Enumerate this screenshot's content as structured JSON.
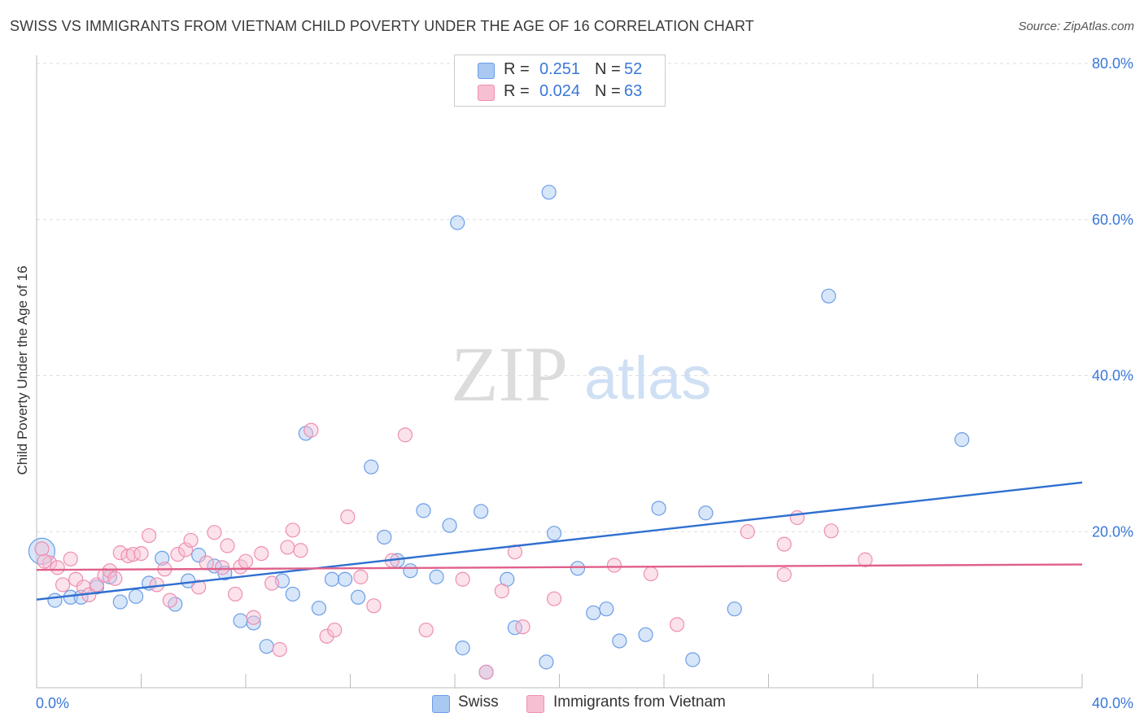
{
  "title": "SWISS VS IMMIGRANTS FROM VIETNAM CHILD POVERTY UNDER THE AGE OF 16 CORRELATION CHART",
  "source": "Source: ZipAtlas.com",
  "watermark": {
    "zip": "ZIP",
    "atlas": "atlas"
  },
  "colors": {
    "swiss": "#6b9ee6",
    "swiss_fill": "#a9c8f2",
    "vietnam": "#ee8fb0",
    "vietnam_fill": "#f6bfd2",
    "swiss_line": "#2f6fd0",
    "vietnam_line": "#e0608a",
    "tick_text": "#3a78d8"
  },
  "legend_top": {
    "rows": [
      {
        "r_label": "R =",
        "r_value": "0.251",
        "n_label": "N =",
        "n_value": "52"
      },
      {
        "r_label": "R =",
        "r_value": "0.024",
        "n_label": "N =",
        "n_value": "63"
      }
    ]
  },
  "legend_bottom": {
    "swiss": "Swiss",
    "vietnam": "Immigrants from Vietnam"
  },
  "chart_data": {
    "type": "scatter",
    "title": "SWISS VS IMMIGRANTS FROM VIETNAM CHILD POVERTY UNDER THE AGE OF 16 CORRELATION CHART",
    "xlabel": "",
    "ylabel": "Child Poverty Under the Age of 16",
    "xlim": [
      0,
      40
    ],
    "ylim": [
      0,
      80
    ],
    "x_ticks": [
      "0.0%",
      "40.0%"
    ],
    "y_ticks": [
      "20.0%",
      "40.0%",
      "60.0%",
      "80.0%"
    ],
    "grid": true,
    "legend": "top-center",
    "series": [
      {
        "name": "Swiss",
        "r": 0.251,
        "n": 52,
        "trend": {
          "x": [
            0,
            40
          ],
          "y": [
            11.3,
            26.3
          ]
        },
        "points": [
          [
            0.2,
            17.5
          ],
          [
            0.7,
            11.2
          ],
          [
            1.3,
            11.6
          ],
          [
            1.7,
            11.6
          ],
          [
            2.3,
            12.9
          ],
          [
            2.8,
            14.2
          ],
          [
            3.2,
            11.0
          ],
          [
            3.8,
            11.7
          ],
          [
            4.3,
            13.4
          ],
          [
            4.8,
            16.6
          ],
          [
            5.3,
            10.7
          ],
          [
            5.8,
            13.7
          ],
          [
            6.2,
            17.0
          ],
          [
            6.8,
            15.6
          ],
          [
            7.2,
            14.7
          ],
          [
            7.8,
            8.6
          ],
          [
            8.3,
            8.3
          ],
          [
            8.8,
            5.3
          ],
          [
            9.4,
            13.7
          ],
          [
            9.8,
            12.0
          ],
          [
            10.3,
            32.6
          ],
          [
            10.8,
            10.2
          ],
          [
            11.3,
            13.9
          ],
          [
            11.8,
            13.9
          ],
          [
            12.3,
            11.6
          ],
          [
            12.8,
            28.3
          ],
          [
            13.3,
            19.3
          ],
          [
            13.8,
            16.3
          ],
          [
            14.3,
            15.0
          ],
          [
            14.8,
            22.7
          ],
          [
            15.3,
            14.2
          ],
          [
            15.8,
            20.8
          ],
          [
            16.1,
            59.6
          ],
          [
            16.3,
            5.1
          ],
          [
            17.0,
            22.6
          ],
          [
            17.2,
            2.0
          ],
          [
            18.0,
            13.9
          ],
          [
            18.3,
            7.7
          ],
          [
            19.6,
            63.5
          ],
          [
            19.5,
            3.3
          ],
          [
            19.8,
            19.8
          ],
          [
            20.7,
            15.3
          ],
          [
            21.3,
            9.6
          ],
          [
            21.8,
            10.1
          ],
          [
            22.3,
            6.0
          ],
          [
            23.3,
            6.8
          ],
          [
            23.8,
            23.0
          ],
          [
            25.1,
            3.6
          ],
          [
            25.6,
            22.4
          ],
          [
            26.7,
            10.1
          ],
          [
            30.3,
            50.2
          ],
          [
            35.4,
            31.8
          ]
        ]
      },
      {
        "name": "Immigrants from Vietnam",
        "r": 0.024,
        "n": 63,
        "trend": {
          "x": [
            0,
            40
          ],
          "y": [
            15.1,
            15.8
          ]
        },
        "points": [
          [
            0.2,
            17.8
          ],
          [
            0.5,
            16.0
          ],
          [
            0.8,
            15.4
          ],
          [
            1.0,
            13.2
          ],
          [
            1.3,
            16.5
          ],
          [
            1.5,
            13.9
          ],
          [
            1.8,
            12.9
          ],
          [
            2.0,
            11.9
          ],
          [
            2.3,
            13.2
          ],
          [
            2.6,
            14.4
          ],
          [
            2.8,
            15.0
          ],
          [
            3.0,
            14.0
          ],
          [
            3.2,
            17.3
          ],
          [
            3.5,
            16.9
          ],
          [
            3.7,
            17.1
          ],
          [
            4.0,
            17.2
          ],
          [
            4.3,
            19.5
          ],
          [
            4.6,
            13.2
          ],
          [
            4.9,
            15.2
          ],
          [
            5.1,
            11.2
          ],
          [
            5.4,
            17.1
          ],
          [
            5.7,
            17.7
          ],
          [
            5.9,
            18.9
          ],
          [
            6.2,
            12.9
          ],
          [
            6.5,
            16.0
          ],
          [
            6.8,
            19.9
          ],
          [
            7.1,
            15.4
          ],
          [
            7.3,
            18.2
          ],
          [
            7.6,
            12.0
          ],
          [
            7.8,
            15.5
          ],
          [
            8.0,
            16.2
          ],
          [
            8.3,
            9.0
          ],
          [
            8.6,
            17.2
          ],
          [
            9.0,
            13.4
          ],
          [
            9.3,
            4.9
          ],
          [
            9.6,
            18.0
          ],
          [
            9.8,
            20.2
          ],
          [
            10.1,
            17.6
          ],
          [
            10.5,
            33.0
          ],
          [
            11.1,
            6.6
          ],
          [
            11.4,
            7.4
          ],
          [
            11.9,
            21.9
          ],
          [
            12.4,
            14.2
          ],
          [
            12.9,
            10.5
          ],
          [
            13.6,
            16.3
          ],
          [
            14.1,
            32.4
          ],
          [
            14.9,
            7.4
          ],
          [
            16.3,
            13.9
          ],
          [
            17.2,
            2.0
          ],
          [
            17.8,
            12.4
          ],
          [
            18.3,
            17.4
          ],
          [
            18.6,
            7.8
          ],
          [
            19.8,
            11.4
          ],
          [
            22.1,
            15.7
          ],
          [
            23.5,
            14.6
          ],
          [
            24.5,
            8.1
          ],
          [
            27.2,
            20.0
          ],
          [
            28.6,
            18.4
          ],
          [
            28.6,
            14.5
          ],
          [
            29.1,
            21.8
          ],
          [
            30.4,
            20.1
          ],
          [
            31.7,
            16.4
          ],
          [
            0.3,
            16.2
          ]
        ]
      }
    ]
  }
}
